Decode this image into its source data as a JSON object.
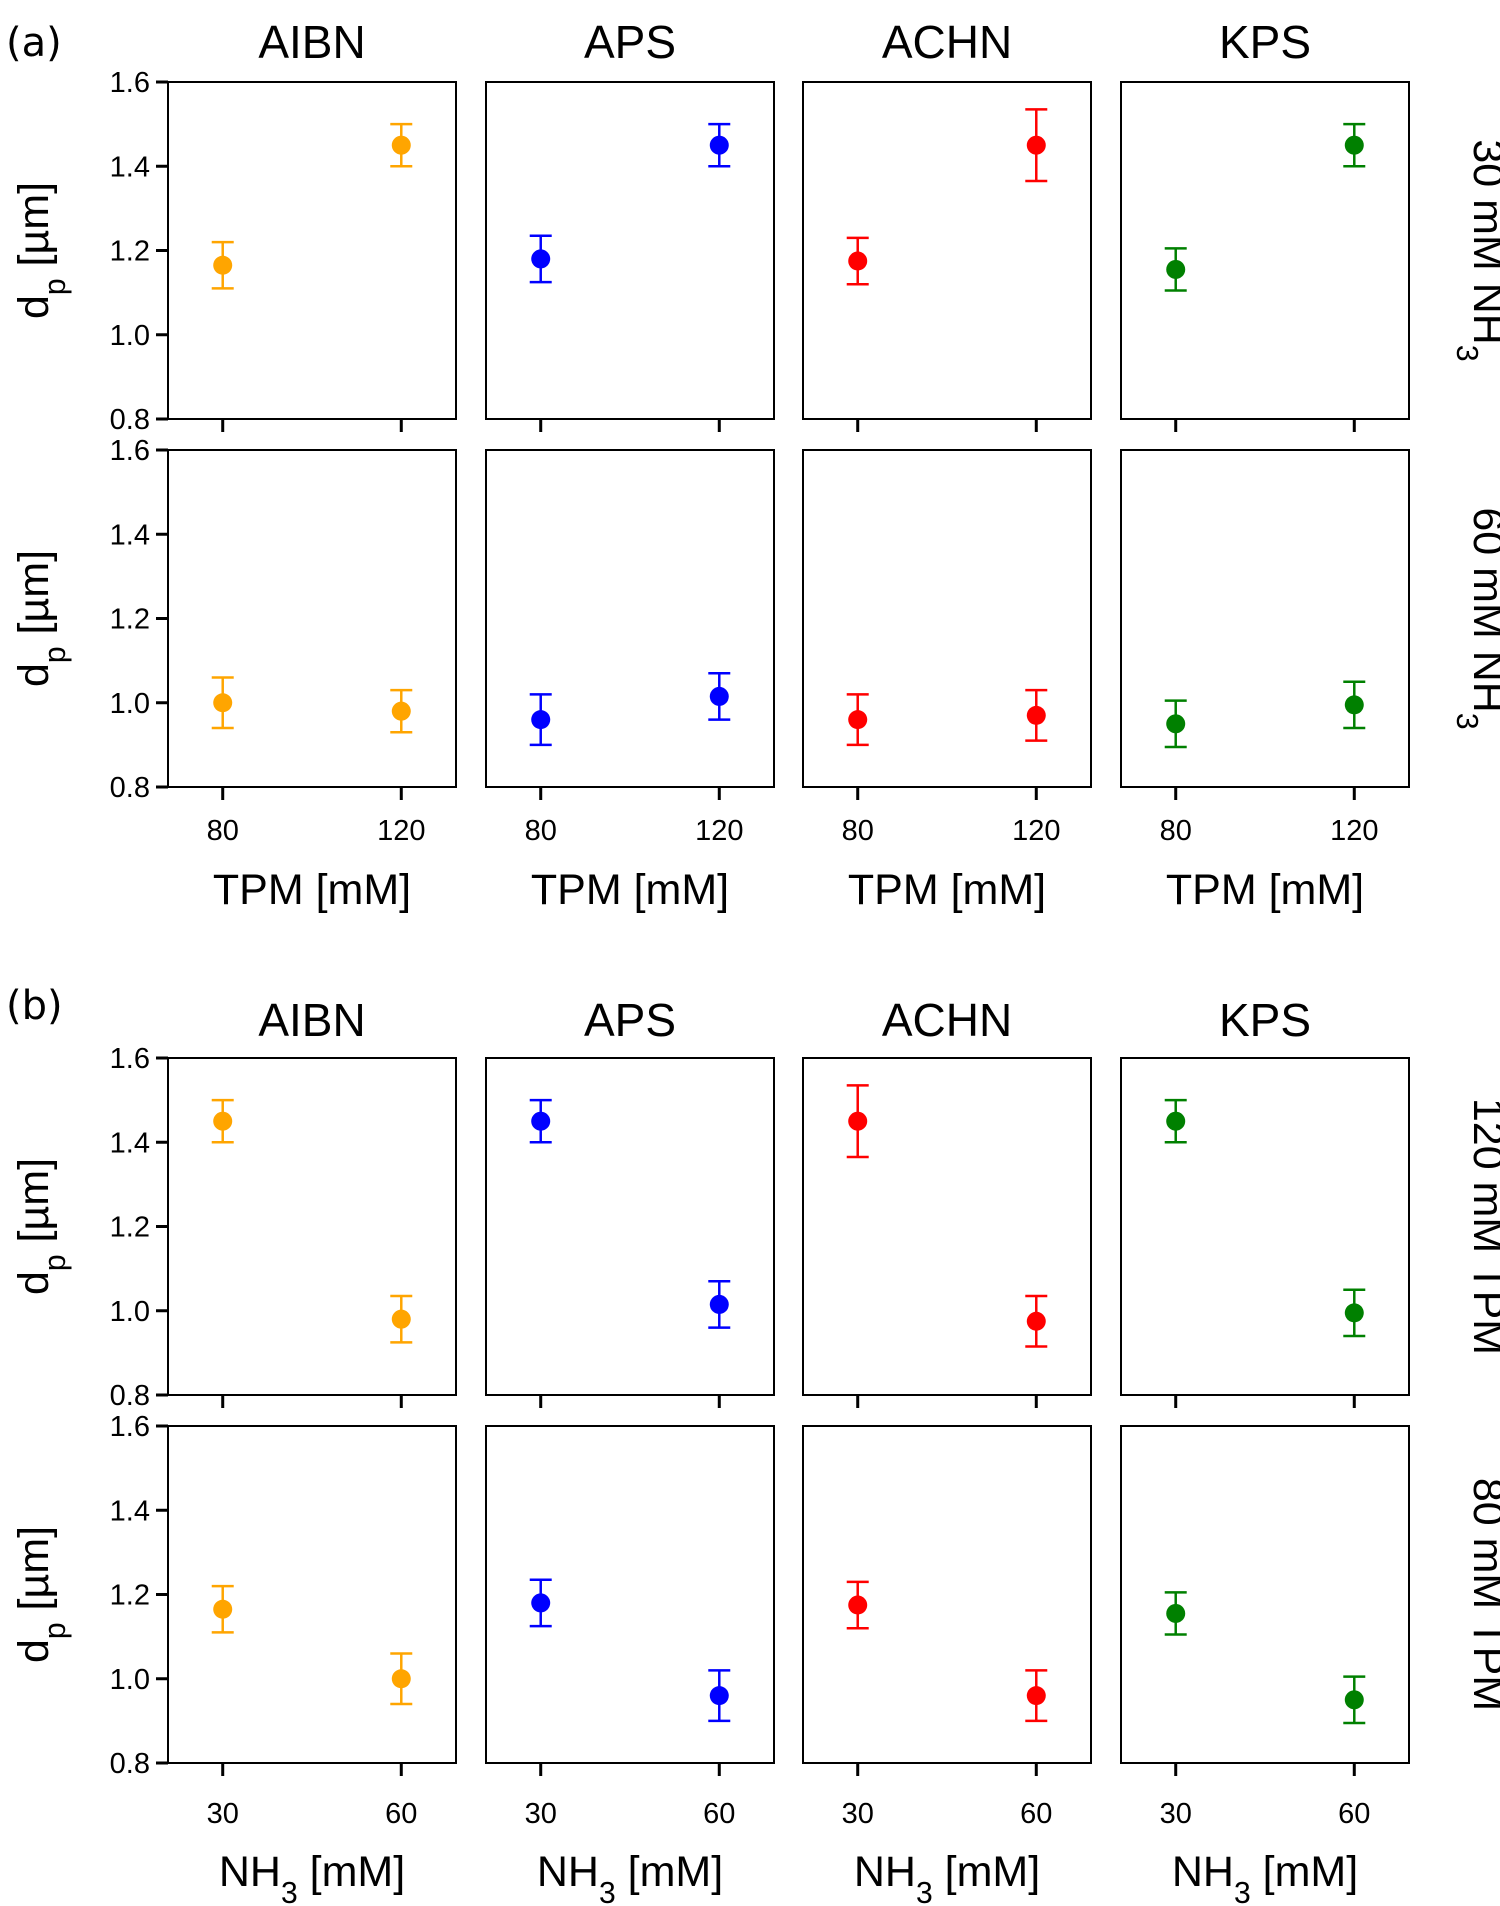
{
  "colors": {
    "AIBN": "#FFA500",
    "APS": "#0000FF",
    "ACHN": "#FF0000",
    "KPS": "#008000"
  },
  "panels": [
    {
      "label": "(a)"
    },
    {
      "label": "(b)"
    }
  ],
  "chart_data": [
    {
      "panel": "(a)",
      "type": "scatter",
      "columns": [
        "AIBN",
        "APS",
        "ACHN",
        "KPS"
      ],
      "column_titles": [
        "AIBN",
        "APS",
        "ACHN",
        "KPS"
      ],
      "rows": [
        {
          "label_main": "30 mM NH",
          "label_sub": "3",
          "label_post": ""
        },
        {
          "label_main": "60 mM NH",
          "label_sub": "3",
          "label_post": ""
        }
      ],
      "xlabel": {
        "main": "TPM [mM]",
        "sub": "",
        "post": ""
      },
      "ylabel": {
        "main": "d",
        "sub": "p",
        "post": " [µm]"
      },
      "x_ticks": [
        "80",
        "120"
      ],
      "y_ticks": [
        "0.8",
        "1.0",
        "1.2",
        "1.4",
        "1.6"
      ],
      "ylim": [
        0.8,
        1.6
      ],
      "data": [
        [
          {
            "x": [
              "80",
              "120"
            ],
            "y": [
              1.165,
              1.45
            ],
            "err": [
              0.055,
              0.05
            ]
          },
          {
            "x": [
              "80",
              "120"
            ],
            "y": [
              1.18,
              1.45
            ],
            "err": [
              0.055,
              0.05
            ]
          },
          {
            "x": [
              "80",
              "120"
            ],
            "y": [
              1.175,
              1.45
            ],
            "err": [
              0.055,
              0.085
            ]
          },
          {
            "x": [
              "80",
              "120"
            ],
            "y": [
              1.155,
              1.45
            ],
            "err": [
              0.05,
              0.05
            ]
          }
        ],
        [
          {
            "x": [
              "80",
              "120"
            ],
            "y": [
              1.0,
              0.98
            ],
            "err": [
              0.06,
              0.05
            ]
          },
          {
            "x": [
              "80",
              "120"
            ],
            "y": [
              0.96,
              1.015
            ],
            "err": [
              0.06,
              0.055
            ]
          },
          {
            "x": [
              "80",
              "120"
            ],
            "y": [
              0.96,
              0.97
            ],
            "err": [
              0.06,
              0.06
            ]
          },
          {
            "x": [
              "80",
              "120"
            ],
            "y": [
              0.95,
              0.995
            ],
            "err": [
              0.055,
              0.055
            ]
          }
        ]
      ]
    },
    {
      "panel": "(b)",
      "type": "scatter",
      "columns": [
        "AIBN",
        "APS",
        "ACHN",
        "KPS"
      ],
      "column_titles": [
        "AIBN",
        "APS",
        "ACHN",
        "KPS"
      ],
      "rows": [
        {
          "label_main": "120 mM TPM",
          "label_sub": "",
          "label_post": ""
        },
        {
          "label_main": "80 mM TPM",
          "label_sub": "",
          "label_post": ""
        }
      ],
      "xlabel": {
        "main": "NH",
        "sub": "3",
        "post": " [mM]"
      },
      "ylabel": {
        "main": "d",
        "sub": "p",
        "post": " [µm]"
      },
      "x_ticks": [
        "30",
        "60"
      ],
      "y_ticks": [
        "0.8",
        "1.0",
        "1.2",
        "1.4",
        "1.6"
      ],
      "ylim": [
        0.8,
        1.6
      ],
      "data": [
        [
          {
            "x": [
              "30",
              "60"
            ],
            "y": [
              1.45,
              0.98
            ],
            "err": [
              0.05,
              0.055
            ]
          },
          {
            "x": [
              "30",
              "60"
            ],
            "y": [
              1.45,
              1.015
            ],
            "err": [
              0.05,
              0.055
            ]
          },
          {
            "x": [
              "30",
              "60"
            ],
            "y": [
              1.45,
              0.975
            ],
            "err": [
              0.085,
              0.06
            ]
          },
          {
            "x": [
              "30",
              "60"
            ],
            "y": [
              1.45,
              0.995
            ],
            "err": [
              0.05,
              0.055
            ]
          }
        ],
        [
          {
            "x": [
              "30",
              "60"
            ],
            "y": [
              1.165,
              1.0
            ],
            "err": [
              0.055,
              0.06
            ]
          },
          {
            "x": [
              "30",
              "60"
            ],
            "y": [
              1.18,
              0.96
            ],
            "err": [
              0.055,
              0.06
            ]
          },
          {
            "x": [
              "30",
              "60"
            ],
            "y": [
              1.175,
              0.96
            ],
            "err": [
              0.055,
              0.06
            ]
          },
          {
            "x": [
              "30",
              "60"
            ],
            "y": [
              1.155,
              0.95
            ],
            "err": [
              0.05,
              0.055
            ]
          }
        ]
      ]
    }
  ]
}
